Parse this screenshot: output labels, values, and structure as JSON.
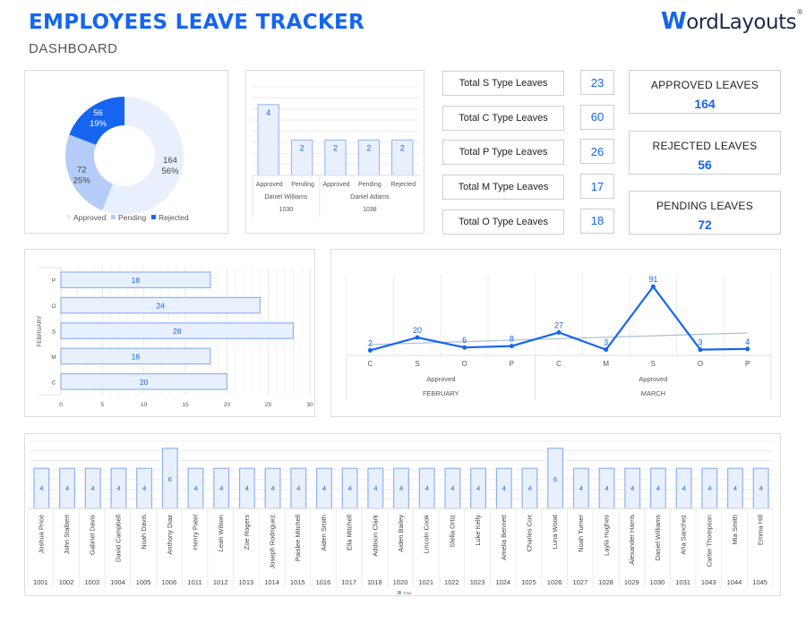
{
  "header": {
    "title": "EMPLOYEES LEAVE TRACKER",
    "subtitle": "DASHBOARD",
    "logo_initial": "W",
    "logo_rest": "ordLayouts",
    "logo_mark": "®"
  },
  "colors": {
    "accent": "#1565f0",
    "approved": "#e8f0fd",
    "pending": "#b4cdf8",
    "rejected": "#1565f0",
    "bar_fill": "#e8f0fd",
    "bar_stroke": "#8fb3f0",
    "trendline": "#a9bfcf"
  },
  "type_totals": [
    {
      "label": "Total S Type Leaves",
      "value": "23"
    },
    {
      "label": "Total C Type Leaves",
      "value": "60"
    },
    {
      "label": "Total P Type Leaves",
      "value": "26"
    },
    {
      "label": "Total M Type Leaves",
      "value": "17"
    },
    {
      "label": "Total O Type Leaves",
      "value": "18"
    }
  ],
  "kpis": [
    {
      "label": "APPROVED LEAVES",
      "value": "164"
    },
    {
      "label": "REJECTED LEAVES",
      "value": "56"
    },
    {
      "label": "PENDING LEAVES",
      "value": "72"
    }
  ],
  "chart_data": [
    {
      "type": "pie",
      "variant": "donut",
      "title": "",
      "categories": [
        "Approved",
        "Pending",
        "Rejected"
      ],
      "values": [
        164,
        72,
        56
      ],
      "percent_labels": [
        "56%",
        "25%",
        "19%"
      ],
      "value_labels": [
        "164",
        "72",
        "56"
      ],
      "legend": [
        "Approved",
        "Pending",
        "Rejected"
      ],
      "legend_position": "bottom"
    },
    {
      "type": "bar",
      "title": "",
      "categories": [
        "Approved",
        "Pending",
        "Approved",
        "Pending",
        "Rejected"
      ],
      "group_labels": [
        {
          "name": "Daniel Williams",
          "id": "1030",
          "span": 2
        },
        {
          "name": "Daniel Adams",
          "id": "1038",
          "span": 3
        }
      ],
      "values": [
        4,
        2,
        2,
        2,
        2
      ],
      "ylim": [
        0,
        5
      ],
      "grid": true
    },
    {
      "type": "bar",
      "orientation": "horizontal",
      "title": "",
      "ylabel": "FEBRUARY",
      "categories": [
        "P",
        "O",
        "S",
        "M",
        "C"
      ],
      "values": [
        18,
        24,
        28,
        18,
        20
      ],
      "xlim": [
        0,
        30
      ],
      "xticks": [
        "0",
        "5",
        "10",
        "15",
        "20",
        "25",
        "30"
      ],
      "grid": true
    },
    {
      "type": "line",
      "title": "",
      "x": [
        "C",
        "S",
        "O",
        "P",
        "C",
        "M",
        "S",
        "O",
        "P"
      ],
      "values": [
        2,
        20,
        6,
        8,
        27,
        3,
        91,
        3,
        4
      ],
      "group_labels": [
        {
          "status": "Approved",
          "month": "FEBRUARY",
          "span": 4
        },
        {
          "status": "Approved",
          "month": "MARCH",
          "span": 5
        }
      ],
      "trendline": true,
      "ylim": [
        0,
        100
      ],
      "grid": true
    },
    {
      "type": "bar",
      "title": "",
      "legend": [
        "Total"
      ],
      "legend_position": "bottom",
      "categories": [
        {
          "name": "Joshua Price",
          "id": "1001"
        },
        {
          "name": "John Stalbert",
          "id": "1002"
        },
        {
          "name": "Gabriel Davis",
          "id": "1003"
        },
        {
          "name": "David Campbell",
          "id": "1004"
        },
        {
          "name": "Noah Davis",
          "id": "1005"
        },
        {
          "name": "Anthony Diaz",
          "id": "1006"
        },
        {
          "name": "Henry Patel",
          "id": "1011"
        },
        {
          "name": "Leah Wilson",
          "id": "1012"
        },
        {
          "name": "Zoe Rogers",
          "id": "1013"
        },
        {
          "name": "Joseph Rodriguez",
          "id": "1014"
        },
        {
          "name": "Paislee Mitchell",
          "id": "1015"
        },
        {
          "name": "Aiden Smith",
          "id": "1016"
        },
        {
          "name": "Ella Mitchell",
          "id": "1017"
        },
        {
          "name": "Addison Clark",
          "id": "1018"
        },
        {
          "name": "Aiden Bailey",
          "id": "1020"
        },
        {
          "name": "Lincoln Cook",
          "id": "1021"
        },
        {
          "name": "Stella Ortiz",
          "id": "1022"
        },
        {
          "name": "Luke Kelly",
          "id": "1023"
        },
        {
          "name": "Amelia Bennett",
          "id": "1024"
        },
        {
          "name": "Charles Cox",
          "id": "1025"
        },
        {
          "name": "Luna Wood",
          "id": "1026"
        },
        {
          "name": "Noah Turner",
          "id": "1027"
        },
        {
          "name": "Layla Hughes",
          "id": "1028"
        },
        {
          "name": "Alexander Harris",
          "id": "1029"
        },
        {
          "name": "Daniel Williams",
          "id": "1030"
        },
        {
          "name": "Aria Sanchez",
          "id": "1031"
        },
        {
          "name": "Carter Thompson",
          "id": "1043"
        },
        {
          "name": "Mia Smith",
          "id": "1044"
        },
        {
          "name": "Emma Hill",
          "id": "1045"
        }
      ],
      "values": [
        4,
        4,
        4,
        4,
        4,
        6,
        4,
        4,
        4,
        4,
        4,
        4,
        4,
        4,
        4,
        4,
        4,
        4,
        4,
        4,
        6,
        4,
        4,
        4,
        4,
        4,
        4,
        4,
        4
      ],
      "ylim": [
        0,
        8
      ],
      "grid": true
    }
  ]
}
